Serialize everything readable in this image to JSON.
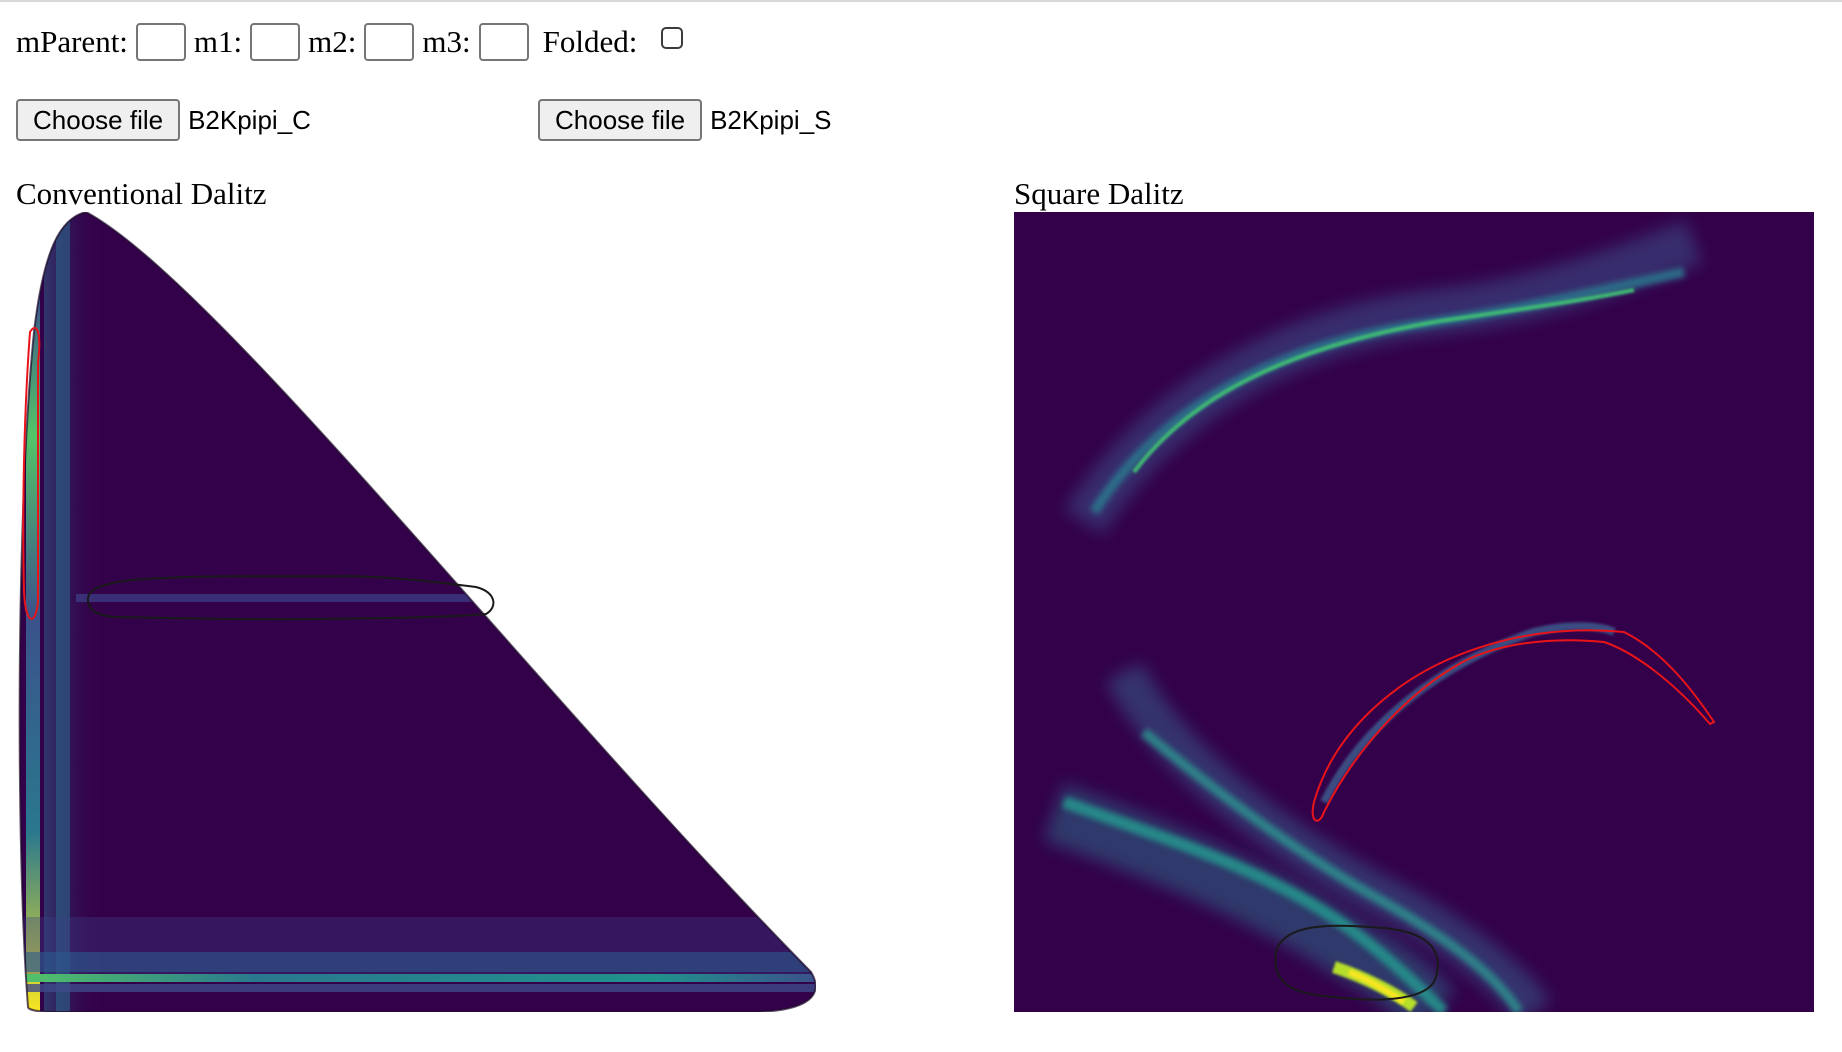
{
  "controls": {
    "mparent_label": "mParent:",
    "m1_label": "m1:",
    "m2_label": "m2:",
    "m3_label": "m3:",
    "folded_label": "Folded:",
    "mparent_value": "",
    "m1_value": "",
    "m2_value": "",
    "m3_value": "",
    "folded_checked": false
  },
  "files": {
    "conventional": {
      "button_label": "Choose file",
      "file_name": "B2Kpipi_C"
    },
    "square": {
      "button_label": "Choose file",
      "file_name": "B2Kpipi_S"
    }
  },
  "plots": {
    "conventional_title": "Conventional Dalitz",
    "square_title": "Square Dalitz",
    "colormap": [
      "#330149",
      "#3b4f8a",
      "#23908d",
      "#54c568",
      "#f8e621"
    ],
    "background_color": "#330149",
    "selection_colors": {
      "red": "#e8141a",
      "black": "#1a1a1a"
    }
  }
}
